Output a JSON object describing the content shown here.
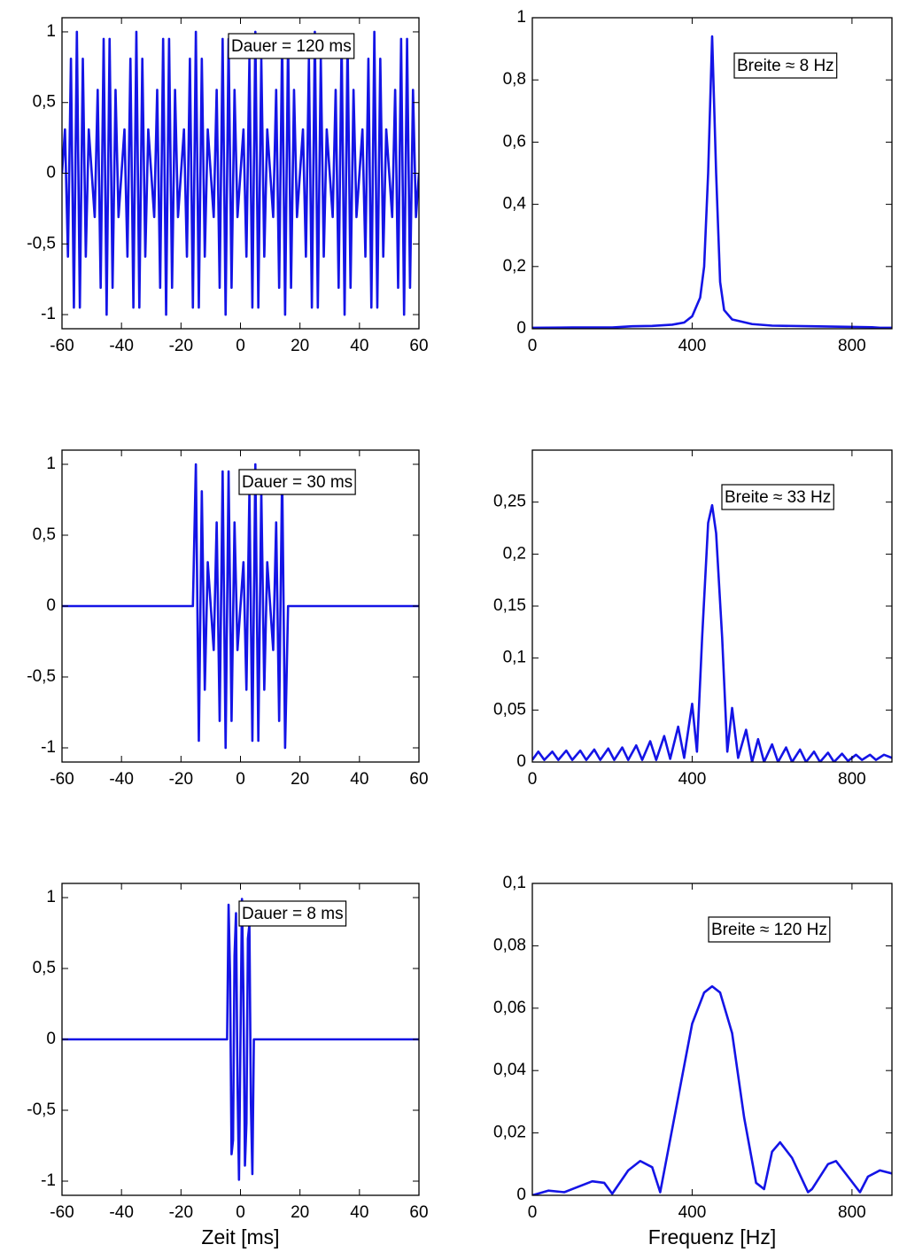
{
  "chart_data": [
    {
      "type": "line",
      "color": "#1414e6",
      "annotation": "Dauer = 120 ms",
      "xlim": [
        -60,
        60
      ],
      "xticks": [
        -60,
        -40,
        -20,
        0,
        20,
        40,
        60
      ],
      "ylim": [
        -1.1,
        1.1
      ],
      "yticks": [
        -1,
        {
          "value": -0.5,
          "label": "-0,5"
        },
        0,
        {
          "value": 0.5,
          "label": "0,5"
        },
        1
      ],
      "x": [
        -60,
        -59,
        -58,
        -57,
        -56,
        -55,
        -54,
        -53,
        -52,
        -51,
        -50,
        -49,
        -48,
        -47,
        -46,
        -45,
        -44,
        -43,
        -42,
        -41,
        -40,
        -39,
        -38,
        -37,
        -36,
        -35,
        -34,
        -33,
        -32,
        -31,
        -30,
        -29,
        -28,
        -27,
        -26,
        -25,
        -24,
        -23,
        -22,
        -21,
        -20,
        -19,
        -18,
        -17,
        -16,
        -15,
        -14,
        -13,
        -12,
        -11,
        -10,
        -9,
        -8,
        -7,
        -6,
        -5,
        -4,
        -3,
        -2,
        -1,
        0,
        1,
        2,
        3,
        4,
        5,
        6,
        7,
        8,
        9,
        10,
        11,
        12,
        13,
        14,
        15,
        16,
        17,
        18,
        19,
        20,
        21,
        22,
        23,
        24,
        25,
        26,
        27,
        28,
        29,
        30,
        31,
        32,
        33,
        34,
        35,
        36,
        37,
        38,
        39,
        40,
        41,
        42,
        43,
        44,
        45,
        46,
        47,
        48,
        49,
        50,
        51,
        52,
        53,
        54,
        55,
        56,
        57,
        58,
        59,
        60
      ],
      "values": [
        0,
        0.31,
        -0.59,
        0.81,
        -0.95,
        1,
        -0.95,
        0.81,
        -0.59,
        0.31,
        0,
        -0.31,
        0.59,
        -0.81,
        0.95,
        -1,
        0.95,
        -0.81,
        0.59,
        -0.31,
        0,
        0.31,
        -0.59,
        0.81,
        -0.95,
        1,
        -0.95,
        0.81,
        -0.59,
        0.31,
        0,
        -0.31,
        0.59,
        -0.81,
        0.95,
        -1,
        0.95,
        -0.81,
        0.59,
        -0.31,
        0,
        0.31,
        -0.59,
        0.81,
        -0.95,
        1,
        -0.95,
        0.81,
        -0.59,
        0.31,
        0,
        -0.31,
        0.59,
        -0.81,
        0.95,
        -1,
        0.95,
        -0.81,
        0.59,
        -0.31,
        0,
        0.31,
        -0.59,
        0.81,
        -0.95,
        1,
        -0.95,
        0.81,
        -0.59,
        0.31,
        0,
        -0.31,
        0.59,
        -0.81,
        0.95,
        -1,
        0.95,
        -0.81,
        0.59,
        -0.31,
        0,
        0.31,
        -0.59,
        0.81,
        -0.95,
        1,
        -0.95,
        0.81,
        -0.59,
        0.31,
        0,
        -0.31,
        0.59,
        -0.81,
        0.95,
        -1,
        0.95,
        -0.81,
        0.59,
        -0.31,
        0,
        0.31,
        -0.59,
        0.81,
        -0.95,
        1,
        -0.95,
        0.81,
        -0.59,
        0.31,
        0,
        -0.31,
        0.59,
        -0.81,
        0.95,
        -1,
        0.95,
        -0.81,
        0.59,
        -0.31,
        0
      ]
    },
    {
      "type": "line",
      "color": "#1414e6",
      "annotation": "Breite ≈ 8 Hz",
      "xlim": [
        0,
        900
      ],
      "xticks": [
        0,
        400,
        800
      ],
      "ylim": [
        0,
        1
      ],
      "yticks": [
        0,
        {
          "value": 0.2,
          "label": "0,2"
        },
        {
          "value": 0.4,
          "label": "0,4"
        },
        {
          "value": 0.6,
          "label": "0,6"
        },
        {
          "value": 0.8,
          "label": "0,8"
        },
        1
      ],
      "x": [
        0,
        100,
        200,
        250,
        300,
        350,
        380,
        400,
        420,
        430,
        440,
        450,
        460,
        470,
        480,
        500,
        550,
        600,
        700,
        800,
        850,
        870,
        900
      ],
      "values": [
        0.003,
        0.004,
        0.004,
        0.008,
        0.009,
        0.013,
        0.02,
        0.04,
        0.1,
        0.2,
        0.5,
        0.94,
        0.5,
        0.15,
        0.06,
        0.03,
        0.015,
        0.01,
        0.008,
        0.006,
        0.005,
        0.003,
        0.003
      ]
    },
    {
      "type": "line",
      "color": "#1414e6",
      "annotation": "Dauer = 30 ms",
      "xlim": [
        -60,
        60
      ],
      "xticks": [
        -60,
        -40,
        -20,
        0,
        20,
        40,
        60
      ],
      "ylim": [
        -1.1,
        1.1
      ],
      "yticks": [
        -1,
        {
          "value": -0.5,
          "label": "-0,5"
        },
        0,
        {
          "value": 0.5,
          "label": "0,5"
        },
        1
      ],
      "x": [
        -60,
        -16,
        -15,
        -14,
        -13,
        -12,
        -11,
        -10,
        -9,
        -8,
        -7,
        -6,
        -5,
        -4,
        -3,
        -2,
        -1,
        0,
        1,
        2,
        3,
        4,
        5,
        6,
        7,
        8,
        9,
        10,
        11,
        12,
        13,
        14,
        15,
        16,
        60
      ],
      "values": [
        0,
        0,
        1,
        -0.95,
        0.81,
        -0.59,
        0.31,
        0,
        -0.31,
        0.59,
        -0.81,
        0.95,
        -1,
        0.95,
        -0.81,
        0.59,
        -0.31,
        0,
        0.31,
        -0.59,
        0.81,
        -0.95,
        1,
        -0.95,
        0.81,
        -0.59,
        0.31,
        0,
        -0.31,
        0.59,
        -0.81,
        0.95,
        -1,
        0,
        0
      ]
    },
    {
      "type": "line",
      "color": "#1414e6",
      "annotation": "Breite ≈ 33 Hz",
      "xlim": [
        0,
        900
      ],
      "xticks": [
        0,
        400,
        800
      ],
      "ylim": [
        0,
        0.3
      ],
      "yticks": [
        0,
        {
          "value": 0.05,
          "label": "0,05"
        },
        {
          "value": 0.1,
          "label": "0,1"
        },
        {
          "value": 0.15,
          "label": "0,15"
        },
        {
          "value": 0.2,
          "label": "0,2"
        },
        {
          "value": 0.25,
          "label": "0,25"
        }
      ],
      "x": [
        0,
        15,
        30,
        50,
        65,
        85,
        100,
        120,
        135,
        155,
        170,
        190,
        205,
        225,
        240,
        260,
        275,
        295,
        310,
        330,
        345,
        365,
        380,
        400,
        412,
        425,
        440,
        450,
        460,
        475,
        488,
        500,
        515,
        535,
        550,
        565,
        580,
        600,
        615,
        635,
        650,
        670,
        685,
        705,
        720,
        740,
        755,
        775,
        790,
        810,
        825,
        845,
        860,
        880,
        900
      ],
      "values": [
        0.002,
        0.01,
        0.002,
        0.01,
        0.002,
        0.011,
        0.002,
        0.011,
        0.002,
        0.012,
        0.002,
        0.013,
        0.002,
        0.014,
        0.002,
        0.016,
        0.002,
        0.02,
        0.002,
        0.025,
        0.003,
        0.034,
        0.004,
        0.056,
        0.01,
        0.12,
        0.23,
        0.247,
        0.22,
        0.12,
        0.01,
        0.052,
        0.004,
        0.031,
        0,
        0.022,
        0,
        0.017,
        0,
        0.014,
        0,
        0.012,
        0,
        0.01,
        0,
        0.009,
        0,
        0.008,
        0.001,
        0.007,
        0.002,
        0.007,
        0.002,
        0.007,
        0.004
      ]
    },
    {
      "type": "line",
      "color": "#1414e6",
      "annotation": "Dauer = 8 ms",
      "xlabel": "Zeit [ms]",
      "xlim": [
        -60,
        60
      ],
      "xticks": [
        -60,
        -40,
        -20,
        0,
        20,
        40,
        60
      ],
      "ylim": [
        -1.1,
        1.1
      ],
      "yticks": [
        -1,
        {
          "value": -0.5,
          "label": "-0,5"
        },
        0,
        {
          "value": 0.5,
          "label": "0,5"
        },
        1
      ],
      "x": [
        -60,
        -4.5,
        -4,
        -3.5,
        -3,
        -2.5,
        -2,
        -1.5,
        -1,
        -0.5,
        0,
        0.5,
        1,
        1.5,
        2,
        2.5,
        3,
        3.5,
        4,
        4.5,
        60
      ],
      "values": [
        0,
        0,
        0.95,
        0.45,
        -0.81,
        -0.71,
        0.59,
        0.89,
        -0.31,
        -0.99,
        0,
        0.99,
        0.31,
        -0.89,
        -0.59,
        0.71,
        0.81,
        -0.45,
        -0.95,
        0,
        0
      ]
    },
    {
      "type": "line",
      "color": "#1414e6",
      "annotation": "Breite ≈ 120 Hz",
      "xlabel": "Frequenz [Hz]",
      "xlim": [
        0,
        900
      ],
      "xticks": [
        0,
        400,
        800
      ],
      "ylim": [
        0,
        0.1
      ],
      "yticks": [
        0,
        {
          "value": 0.02,
          "label": "0,02"
        },
        {
          "value": 0.04,
          "label": "0,04"
        },
        {
          "value": 0.06,
          "label": "0,06"
        },
        {
          "value": 0.08,
          "label": "0,08"
        },
        {
          "value": 0.1,
          "label": "0,1"
        }
      ],
      "x": [
        0,
        40,
        80,
        100,
        150,
        180,
        200,
        240,
        270,
        300,
        320,
        360,
        400,
        430,
        450,
        470,
        500,
        530,
        560,
        580,
        600,
        620,
        650,
        690,
        700,
        740,
        760,
        790,
        820,
        840,
        870,
        900
      ],
      "values": [
        0,
        0.0015,
        0.001,
        0.002,
        0.0045,
        0.004,
        0.0005,
        0.008,
        0.011,
        0.009,
        0.001,
        0.028,
        0.055,
        0.065,
        0.067,
        0.065,
        0.052,
        0.025,
        0.004,
        0.002,
        0.014,
        0.017,
        0.012,
        0.001,
        0.002,
        0.01,
        0.011,
        0.006,
        0.001,
        0.006,
        0.008,
        0.007
      ]
    }
  ]
}
